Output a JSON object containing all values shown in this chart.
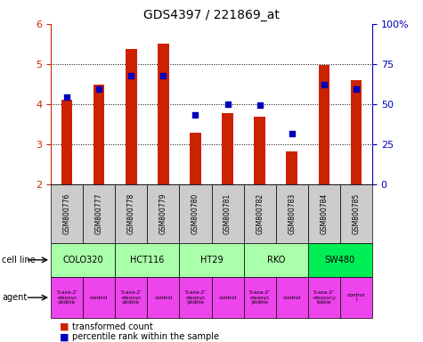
{
  "title": "GDS4397 / 221869_at",
  "samples": [
    "GSM800776",
    "GSM800777",
    "GSM800778",
    "GSM800779",
    "GSM800780",
    "GSM800781",
    "GSM800782",
    "GSM800783",
    "GSM800784",
    "GSM800785"
  ],
  "transformed_count": [
    4.12,
    4.5,
    5.38,
    5.52,
    3.3,
    3.78,
    3.7,
    2.82,
    4.98,
    4.6
  ],
  "percentile_rank": [
    4.17,
    4.38,
    4.72,
    4.72,
    3.73,
    4.0,
    3.97,
    3.28,
    4.48,
    4.38
  ],
  "ylim_left": [
    2,
    6
  ],
  "ylim_right": [
    0,
    100
  ],
  "yticks_left": [
    2,
    3,
    4,
    5,
    6
  ],
  "yticks_right": [
    0,
    25,
    50,
    75,
    100
  ],
  "ytick_labels_right": [
    "0",
    "25",
    "50",
    "75",
    "100%"
  ],
  "bar_color": "#cc2200",
  "dot_color": "#0000bb",
  "bar_bottom": 2.0,
  "bar_width": 0.35,
  "cell_lines": [
    {
      "name": "COLO320",
      "start": 0,
      "end": 2,
      "color": "#aaffaa"
    },
    {
      "name": "HCT116",
      "start": 2,
      "end": 4,
      "color": "#aaffaa"
    },
    {
      "name": "HT29",
      "start": 4,
      "end": 6,
      "color": "#aaffaa"
    },
    {
      "name": "RKO",
      "start": 6,
      "end": 8,
      "color": "#aaffaa"
    },
    {
      "name": "SW480",
      "start": 8,
      "end": 10,
      "color": "#00ee55"
    }
  ],
  "agents": [
    {
      "name": "5-aza-2'\n-deoxyc\nytidine",
      "type": "drug",
      "col": 0
    },
    {
      "name": "control",
      "type": "control",
      "col": 1
    },
    {
      "name": "5-aza-2'\n-deoxyc\nytidine",
      "type": "drug",
      "col": 2
    },
    {
      "name": "control",
      "type": "control",
      "col": 3
    },
    {
      "name": "5-aza-2'\n-deoxyc\nytidine",
      "type": "drug",
      "col": 4
    },
    {
      "name": "control",
      "type": "control",
      "col": 5
    },
    {
      "name": "5-aza-2'\n-deoxyc\nytidine",
      "type": "drug",
      "col": 6
    },
    {
      "name": "control",
      "type": "control",
      "col": 7
    },
    {
      "name": "5-aza-2'\n-deoxycy\ntidine",
      "type": "drug",
      "col": 8
    },
    {
      "name": "control\nl",
      "type": "control",
      "col": 9
    }
  ],
  "drug_color": "#ee44ee",
  "control_color": "#ee44ee",
  "sample_box_color": "#cccccc",
  "bg_color": "#ffffff",
  "left_tick_color": "#cc2200",
  "right_tick_color": "#0000bb",
  "legend_red": "transformed count",
  "legend_blue": "percentile rank within the sample",
  "grid_yticks": [
    3,
    4,
    5
  ]
}
